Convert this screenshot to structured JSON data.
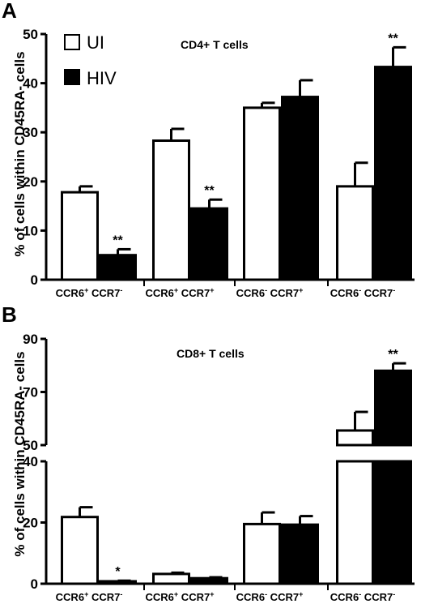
{
  "legend": {
    "series": [
      {
        "name": "UI",
        "color": "#ffffff"
      },
      {
        "name": "HIV",
        "color": "#000000"
      }
    ]
  },
  "chart_data": [
    {
      "panel": "A",
      "type": "bar",
      "title": "CD4+ T cells",
      "ylabel": "% of cells within CD45RA- cells",
      "ylim": [
        0,
        50
      ],
      "yticks": [
        0,
        10,
        20,
        30,
        40,
        50
      ],
      "categories": [
        {
          "a": "CCR6",
          "sa": "+",
          "b": "CCR7",
          "sb": "-"
        },
        {
          "a": "CCR6",
          "sa": "+",
          "b": "CCR7",
          "sb": "+"
        },
        {
          "a": "CCR6",
          "sa": "-",
          "b": "CCR7",
          "sb": "+"
        },
        {
          "a": "CCR6",
          "sa": "-",
          "b": "CCR7",
          "sb": "-"
        }
      ],
      "series": [
        {
          "name": "UI",
          "values": [
            17.8,
            28.3,
            35.0,
            19.0
          ],
          "errors": [
            1.2,
            2.4,
            1.0,
            4.8
          ],
          "annotations": [
            "",
            "",
            "",
            ""
          ]
        },
        {
          "name": "HIV",
          "values": [
            5.0,
            14.5,
            37.2,
            43.3
          ],
          "errors": [
            1.2,
            1.8,
            3.4,
            4.0
          ],
          "annotations": [
            "**",
            "**",
            "",
            "**"
          ]
        }
      ]
    },
    {
      "panel": "B",
      "type": "bar",
      "title": "CD8+ T cells",
      "ylabel": "% of cells within CD45RA- cells",
      "axis_break": [
        40,
        50
      ],
      "yticks": [
        0,
        20,
        40,
        50,
        70,
        90
      ],
      "categories": [
        {
          "a": "CCR6",
          "sa": "+",
          "b": "CCR7",
          "sb": "-"
        },
        {
          "a": "CCR6",
          "sa": "+",
          "b": "CCR7",
          "sb": "+"
        },
        {
          "a": "CCR6",
          "sa": "-",
          "b": "CCR7",
          "sb": "+"
        },
        {
          "a": "CCR6",
          "sa": "-",
          "b": "CCR7",
          "sb": "-"
        }
      ],
      "series": [
        {
          "name": "UI",
          "values": [
            21.8,
            3.2,
            19.5,
            55.5
          ],
          "errors": [
            3.2,
            0.4,
            3.8,
            7.0
          ],
          "annotations": [
            "",
            "",
            "",
            ""
          ]
        },
        {
          "name": "HIV",
          "values": [
            0.8,
            1.8,
            19.3,
            78.0
          ],
          "errors": [
            0.2,
            0.3,
            2.8,
            2.8
          ],
          "annotations": [
            "*",
            "",
            "",
            "**"
          ]
        }
      ]
    }
  ]
}
